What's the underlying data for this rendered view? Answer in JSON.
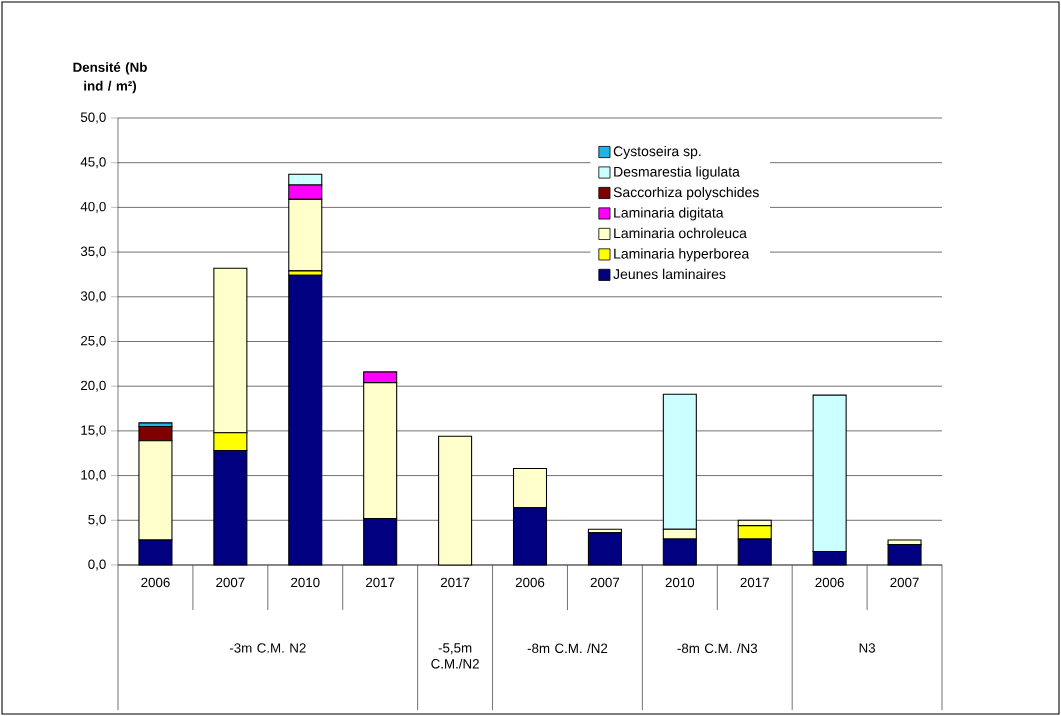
{
  "chart_data": {
    "type": "bar",
    "stacked": true,
    "ylabel": "Densité (Nb ind / m²)",
    "categories": [
      "2006",
      "2007",
      "2010",
      "2017",
      "2017",
      "2006",
      "2007",
      "2010",
      "2017",
      "2006",
      "2007"
    ],
    "annotations": [
      "-3m C.M. N2",
      "-5,5m C.M./N2",
      "-8m C.M. /N2",
      "-8m C.M. /N3",
      "N3"
    ],
    "series": [
      {
        "name": "Jeunes laminaires",
        "color": "#000080",
        "values": [
          2.8,
          12.8,
          32.4,
          5.2,
          null,
          6.4,
          3.6,
          2.9,
          2.9,
          1.5,
          2.3
        ]
      },
      {
        "name": "Laminaria hyperborea",
        "color": "#ffff00",
        "values": [
          null,
          2.0,
          0.5,
          null,
          null,
          null,
          null,
          null,
          1.5,
          null,
          null
        ]
      },
      {
        "name": "Laminaria ochroleuca",
        "color": "#ffffcc",
        "values": [
          11.1,
          18.4,
          8.0,
          15.2,
          14.4,
          4.4,
          0.4,
          1.1,
          0.6,
          null,
          0.5
        ]
      },
      {
        "name": "Laminaria digitata",
        "color": "#ff00ff",
        "values": [
          null,
          null,
          1.6,
          1.2,
          null,
          null,
          null,
          null,
          null,
          null,
          null
        ]
      },
      {
        "name": "Saccorhiza polyschides",
        "color": "#800000",
        "values": [
          1.6,
          null,
          null,
          null,
          null,
          null,
          null,
          null,
          null,
          null,
          null
        ]
      },
      {
        "name": "Desmarestia ligulata",
        "color": "#ccffff",
        "values": [
          null,
          null,
          1.2,
          null,
          null,
          null,
          null,
          15.1,
          null,
          17.5,
          null
        ]
      },
      {
        "name": "Cystoseira sp.",
        "color": "#1fb4e6",
        "values": [
          0.4,
          null,
          null,
          null,
          null,
          null,
          null,
          null,
          null,
          null,
          null
        ]
      }
    ],
    "ylim": [
      0,
      50
    ],
    "yticks": [
      {
        "value": 0,
        "label": "0,0"
      },
      {
        "value": 5,
        "label": "5,0"
      },
      {
        "value": 10,
        "label": "10,0"
      },
      {
        "value": 15,
        "label": "15,0"
      },
      {
        "value": 20,
        "label": "20,0"
      },
      {
        "value": 25,
        "label": "25,0"
      },
      {
        "value": 30,
        "label": "30,0"
      },
      {
        "value": 35,
        "label": "35,0"
      },
      {
        "value": 40,
        "label": "40,0"
      },
      {
        "value": 45,
        "label": "45,0"
      },
      {
        "value": 50,
        "label": "50,0"
      }
    ],
    "grid": "y",
    "legend": "top right"
  }
}
